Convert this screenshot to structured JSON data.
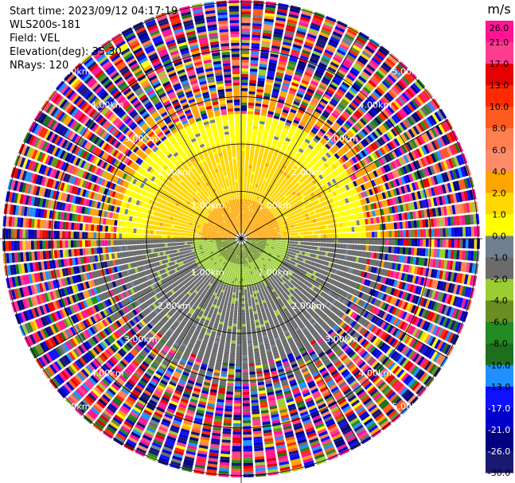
{
  "header": {
    "start_time": "Start time: 2023/09/12 04:17:19",
    "instrument": "WLS200s-181",
    "field": "Field: VEL",
    "elevation": "Elevation(deg): 35.30",
    "nrays": "NRays: 120"
  },
  "colorbar": {
    "unit": "m/s",
    "labels": [
      "26.0",
      "21.0",
      "17.0",
      "13.0",
      "10.0",
      "8.0",
      "6.0",
      "4.0",
      "2.0",
      "1.0",
      "0.0",
      "-1.0",
      "-2.0",
      "-4.0",
      "-6.0",
      "-8.0",
      "-10.0",
      "-13.0",
      "-17.0",
      "-21.0",
      "-26.0",
      "-30.0"
    ],
    "colors": [
      "#ff1493",
      "#ff3d8f",
      "#e60000",
      "#ff2a00",
      "#ff5a1f",
      "#ff7f50",
      "#ff8c69",
      "#ffa500",
      "#ffd700",
      "#ffff00",
      "#708090",
      "#6b6b6b",
      "#9acd32",
      "#6b8e23",
      "#228b22",
      "#1e6e1e",
      "#1e90ff",
      "#1010ff",
      "#0000cd",
      "#000080",
      "#191970"
    ]
  },
  "chart_data": {
    "type": "ppi",
    "field": "VEL",
    "units": "m/s",
    "nrays": 120,
    "elevation_deg": 35.3,
    "range_rings_km": [
      "1.00km",
      "2.00km",
      "3.00km",
      "4.00km",
      "5.00km"
    ],
    "spokes_deg": [
      0,
      30,
      60,
      90,
      120,
      150,
      180,
      210,
      240,
      270,
      300,
      330
    ],
    "radial_structure": [
      {
        "range_km": [
          0,
          1
        ],
        "north_half_ms": 2.0,
        "south_half_ms": -4.0
      },
      {
        "range_km": [
          1,
          2
        ],
        "north_half_ms": 1.5,
        "south_half_ms": -2.0
      },
      {
        "range_km": [
          2,
          2.6
        ],
        "north_half_ms": 0.0,
        "south_half_ms": -1.5
      },
      {
        "range_km": [
          2.6,
          6
        ],
        "pattern": "noise"
      }
    ]
  }
}
